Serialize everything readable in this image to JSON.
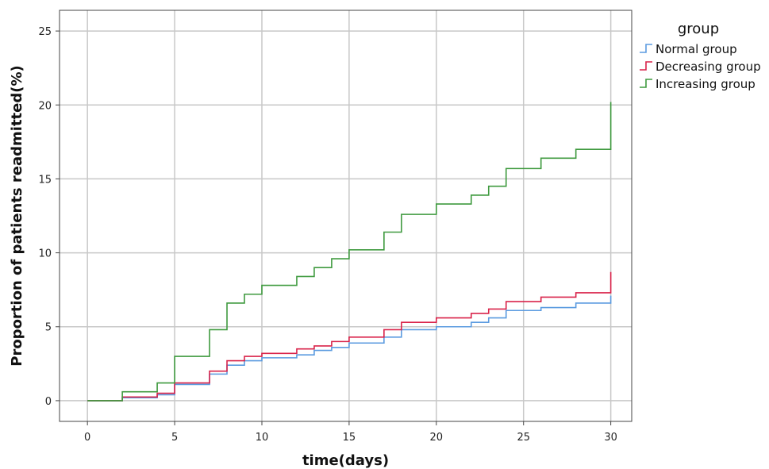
{
  "chart_data": {
    "type": "line",
    "step": true,
    "title": "",
    "xlabel": "time(days)",
    "ylabel": "Proportion of patients readmitted(%)",
    "xlim": [
      -1.6,
      31.2
    ],
    "ylim": [
      -1.4,
      26.4
    ],
    "x_ticks": [
      0,
      5,
      10,
      15,
      20,
      25,
      30
    ],
    "y_ticks": [
      0,
      5,
      10,
      15,
      20,
      25
    ],
    "grid": true,
    "legend": {
      "title": "group",
      "placement": "top-right, outside plot"
    },
    "series": [
      {
        "name": "Normal group",
        "color": "#5b9be0",
        "x": [
          0,
          2,
          4,
          5,
          7,
          8,
          9,
          10,
          12,
          13,
          14,
          15,
          17,
          18,
          20,
          22,
          23,
          24,
          26,
          28,
          30
        ],
        "y": [
          0,
          0.2,
          0.4,
          1.1,
          1.8,
          2.4,
          2.7,
          2.9,
          3.1,
          3.4,
          3.6,
          3.9,
          4.3,
          4.8,
          5.0,
          5.3,
          5.6,
          6.1,
          6.3,
          6.6,
          7.1
        ]
      },
      {
        "name": "Decreasing group",
        "color": "#d9234a",
        "x": [
          0,
          2,
          4,
          5,
          7,
          8,
          9,
          10,
          12,
          13,
          14,
          15,
          17,
          18,
          20,
          22,
          23,
          24,
          26,
          28,
          30
        ],
        "y": [
          0,
          0.25,
          0.5,
          1.2,
          2.0,
          2.7,
          3.0,
          3.2,
          3.5,
          3.7,
          4.0,
          4.3,
          4.8,
          5.3,
          5.6,
          5.9,
          6.2,
          6.7,
          7.0,
          7.3,
          8.7
        ]
      },
      {
        "name": "Increasing group",
        "color": "#3f9a3f",
        "x": [
          0,
          2,
          4,
          5,
          7,
          8,
          9,
          10,
          12,
          13,
          14,
          15,
          17,
          18,
          20,
          22,
          23,
          24,
          26,
          28,
          30
        ],
        "y": [
          0,
          0.6,
          1.2,
          3.0,
          4.8,
          6.6,
          7.2,
          7.8,
          8.4,
          9.0,
          9.6,
          10.2,
          11.4,
          12.6,
          13.3,
          13.9,
          14.5,
          15.7,
          16.4,
          17.0,
          20.2
        ]
      }
    ]
  }
}
